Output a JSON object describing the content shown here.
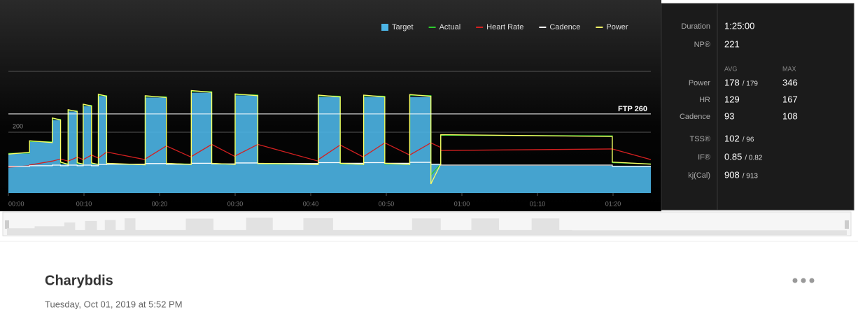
{
  "chart_data": {
    "type": "workout",
    "x": [
      0,
      2.8,
      2.8,
      5.8,
      5.8,
      6.9,
      6.9,
      7.9,
      7.9,
      9.1,
      9.1,
      9.9,
      9.9,
      11,
      11,
      11.9,
      11.9,
      13,
      13,
      18.1,
      18.1,
      20.9,
      20.9,
      24.2,
      24.2,
      26.9,
      26.9,
      30,
      30,
      33,
      33,
      41,
      41,
      43.9,
      43.9,
      47,
      47,
      49.8,
      49.8,
      53.1,
      53.1,
      55.9,
      55.9,
      57.2,
      57.2,
      79.9,
      79.9,
      85
    ],
    "series": [
      {
        "name": "Target",
        "kind": "area",
        "color": "#4cb5e6",
        "values": [
          130,
          130,
          169,
          169,
          240,
          240,
          95,
          95,
          268,
          268,
          95,
          95,
          286,
          286,
          95,
          95,
          319,
          319,
          95,
          95,
          314,
          314,
          95,
          95,
          330,
          330,
          95,
          95,
          321,
          321,
          95,
          95,
          316,
          316,
          95,
          95,
          316,
          316,
          95,
          95,
          316,
          316,
          95,
          95,
          90,
          90,
          90,
          90
        ]
      },
      {
        "name": "Actual",
        "kind": "line",
        "color": "#2ecc2e",
        "values": [
          130,
          132,
          170,
          168,
          245,
          242,
          100,
          96,
          272,
          270,
          98,
          96,
          290,
          288,
          97,
          95,
          322,
          320,
          96,
          94,
          318,
          316,
          97,
          95,
          335,
          333,
          96,
          95,
          324,
          322,
          96,
          95,
          320,
          318,
          96,
          95,
          320,
          318,
          96,
          95,
          322,
          320,
          60,
          95,
          190,
          188,
          100,
          96
        ]
      },
      {
        "name": "Heart Rate",
        "kind": "line",
        "color": "#d42020",
        "values": [
          85,
          90,
          92,
          105,
          105,
          112,
          112,
          105,
          105,
          118,
          118,
          110,
          110,
          125,
          125,
          115,
          115,
          135,
          135,
          110,
          112,
          155,
          155,
          118,
          120,
          160,
          160,
          120,
          122,
          160,
          160,
          105,
          110,
          158,
          158,
          118,
          120,
          165,
          165,
          125,
          125,
          165,
          165,
          150,
          140,
          145,
          145,
          110
        ]
      },
      {
        "name": "Cadence",
        "kind": "line",
        "color": "#ffffff",
        "values": [
          88,
          88,
          90,
          90,
          92,
          92,
          90,
          90,
          92,
          92,
          90,
          90,
          92,
          92,
          90,
          90,
          94,
          94,
          95,
          95,
          97,
          97,
          95,
          95,
          98,
          98,
          96,
          96,
          99,
          99,
          97,
          97,
          100,
          100,
          98,
          98,
          100,
          100,
          98,
          98,
          101,
          101,
          95,
          95,
          92,
          92,
          88,
          88
        ]
      },
      {
        "name": "Power",
        "kind": "line",
        "color": "#ffff66",
        "values": [
          128,
          134,
          172,
          166,
          247,
          240,
          102,
          94,
          274,
          268,
          100,
          95,
          292,
          286,
          99,
          94,
          325,
          318,
          98,
          93,
          320,
          314,
          98,
          94,
          337,
          331,
          98,
          94,
          326,
          320,
          98,
          94,
          322,
          316,
          98,
          94,
          322,
          316,
          98,
          94,
          324,
          318,
          30,
          96,
          192,
          186,
          102,
          95
        ]
      }
    ],
    "xlim": [
      0,
      85
    ],
    "xticks": [
      {
        "value": 0,
        "label": "00:00"
      },
      {
        "value": 10,
        "label": "00:10"
      },
      {
        "value": 20,
        "label": "00:20"
      },
      {
        "value": 30,
        "label": "00:30"
      },
      {
        "value": 40,
        "label": "00:40"
      },
      {
        "value": 50,
        "label": "00:50"
      },
      {
        "value": 60,
        "label": "01:00"
      },
      {
        "value": 70,
        "label": "01:10"
      },
      {
        "value": 80,
        "label": "01:20"
      }
    ],
    "ylim": [
      0,
      400
    ],
    "yticks": [
      200
    ],
    "grid": true,
    "ftp": {
      "value": 260,
      "label": "FTP 260"
    }
  },
  "stats": {
    "summary": [
      {
        "label": "Duration",
        "value": "1:25:00"
      },
      {
        "label": "NP®",
        "value": "221"
      }
    ],
    "columns": [
      "AVG",
      "MAX"
    ],
    "rows": [
      {
        "label": "Power",
        "avg": "178",
        "avg_sub": "/ 179",
        "max": "346"
      },
      {
        "label": "HR",
        "avg": "129",
        "max": "167"
      },
      {
        "label": "Cadence",
        "avg": "93",
        "max": "108"
      }
    ],
    "scores": [
      {
        "label": "TSS®",
        "value": "102",
        "sub": "/ 96"
      },
      {
        "label": "IF®",
        "value": "0.85",
        "sub": "/ 0.82"
      },
      {
        "label": "kj(Cal)",
        "value": "908",
        "sub": "/ 913"
      }
    ]
  },
  "workout": {
    "title": "Charybdis",
    "date": "Tuesday, Oct 01, 2019 at 5:52 PM"
  }
}
